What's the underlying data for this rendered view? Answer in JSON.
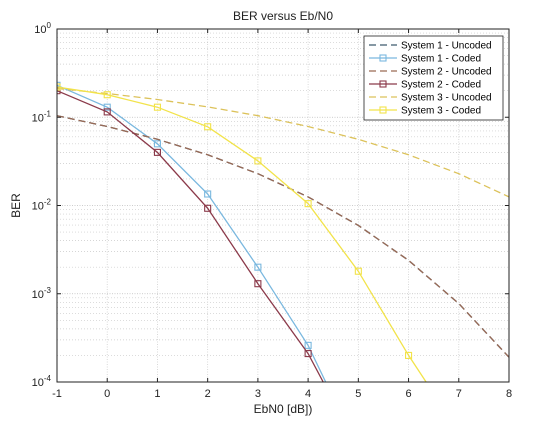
{
  "chart_data": {
    "type": "line",
    "title": "BER versus Eb/N0",
    "xlabel": "EbN0 [dB])",
    "ylabel": "BER",
    "y_scale": "log",
    "xlim": [
      -1,
      8
    ],
    "ylim": [
      0.0001,
      1
    ],
    "x_ticks": [
      "-1",
      "0",
      "1",
      "2",
      "3",
      "4",
      "5",
      "6",
      "7",
      "8"
    ],
    "y_ticks": [
      {
        "value": 1,
        "mantissa": "10",
        "exp": "0"
      },
      {
        "value": 0.1,
        "mantissa": "10",
        "exp": "-1"
      },
      {
        "value": 0.01,
        "mantissa": "10",
        "exp": "-2"
      },
      {
        "value": 0.001,
        "mantissa": "10",
        "exp": "-3"
      },
      {
        "value": 0.0001,
        "mantissa": "10",
        "exp": "-4"
      }
    ],
    "grid": true,
    "minor_grid": true,
    "legend_position": "top-right",
    "series": [
      {
        "name": "System 1 - Uncoded",
        "color": "#3d5a6e",
        "dash": true,
        "marker": "none",
        "x": [
          -1,
          0,
          1,
          2,
          3,
          4,
          5,
          6,
          7,
          8
        ],
        "y": [
          0.104,
          0.0786,
          0.0563,
          0.0375,
          0.0229,
          0.0125,
          0.00595,
          0.00239,
          0.000773,
          0.000191
        ]
      },
      {
        "name": "System 1 - Coded",
        "color": "#7ab8df",
        "dash": false,
        "marker": "square",
        "x": [
          -1,
          0,
          1,
          2,
          3,
          4,
          4.35
        ],
        "y": [
          0.23,
          0.13,
          0.05,
          0.0135,
          0.002,
          0.00026,
          0.0001
        ]
      },
      {
        "name": "System 2 - Uncoded",
        "color": "#9a6a55",
        "dash": true,
        "marker": "none",
        "x": [
          -1,
          0,
          1,
          2,
          3,
          4,
          5,
          6,
          7,
          8
        ],
        "y": [
          0.104,
          0.0786,
          0.0563,
          0.0375,
          0.0229,
          0.0125,
          0.00595,
          0.00239,
          0.000773,
          0.000191
        ]
      },
      {
        "name": "System 2 - Coded",
        "color": "#8b3a4a",
        "dash": false,
        "marker": "square",
        "x": [
          -1,
          0,
          1,
          2,
          3,
          4,
          4.3
        ],
        "y": [
          0.2,
          0.115,
          0.04,
          0.0093,
          0.0013,
          0.00021,
          0.0001
        ]
      },
      {
        "name": "System 3 - Uncoded",
        "color": "#dcc25a",
        "dash": true,
        "marker": "none",
        "x": [
          -1,
          0,
          1,
          2,
          3,
          4,
          5,
          6,
          7,
          8
        ],
        "y": [
          0.212,
          0.186,
          0.159,
          0.131,
          0.104,
          0.0786,
          0.0563,
          0.0375,
          0.0229,
          0.0125
        ]
      },
      {
        "name": "System 3 - Coded",
        "color": "#f2e34a",
        "dash": false,
        "marker": "square",
        "x": [
          -1,
          0,
          1,
          2,
          3,
          4,
          5,
          6,
          6.35
        ],
        "y": [
          0.22,
          0.18,
          0.13,
          0.078,
          0.032,
          0.0105,
          0.0018,
          0.0002,
          0.0001
        ]
      }
    ]
  }
}
